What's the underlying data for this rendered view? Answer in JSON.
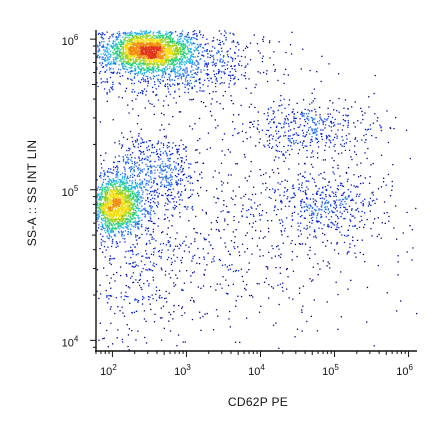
{
  "chart_data": {
    "type": "scatter",
    "subtype": "flow-cytometry-density-dot-plot",
    "xlabel": "CD62P PE",
    "ylabel": "SS-A :: SS INT LIN",
    "x_scale": "log",
    "y_scale": "log",
    "xlim": [
      60,
      1300000
    ],
    "ylim": [
      8500,
      1150000
    ],
    "x_ticks": [
      {
        "value": 100,
        "base": "10",
        "exp": "2"
      },
      {
        "value": 1000,
        "base": "10",
        "exp": "3"
      },
      {
        "value": 10000,
        "base": "10",
        "exp": "4"
      },
      {
        "value": 100000,
        "base": "10",
        "exp": "5"
      },
      {
        "value": 1000000,
        "base": "10",
        "exp": "6"
      }
    ],
    "y_ticks": [
      {
        "value": 10000,
        "base": "10",
        "exp": "4"
      },
      {
        "value": 100000,
        "base": "10",
        "exp": "5"
      },
      {
        "value": 1000000,
        "base": "10",
        "exp": "6"
      }
    ],
    "density_colors": [
      "#00008b",
      "#0020d0",
      "#1f6cf0",
      "#22b5e8",
      "#27d07a",
      "#9ad21e",
      "#f2df14",
      "#f28c10",
      "#e2341a"
    ],
    "populations": [
      {
        "x_center": 300,
        "y_center": 850000,
        "x_spread_decades": 0.28,
        "y_spread_decades": 0.07,
        "relative_count": 0.3
      },
      {
        "x_center": 600,
        "y_center": 700000,
        "x_spread_decades": 0.7,
        "y_spread_decades": 0.13,
        "relative_count": 0.14
      },
      {
        "x_center": 110,
        "y_center": 80000,
        "x_spread_decades": 0.18,
        "y_spread_decades": 0.1,
        "relative_count": 0.22
      },
      {
        "x_center": 350,
        "y_center": 130000,
        "x_spread_decades": 0.3,
        "y_spread_decades": 0.14,
        "relative_count": 0.08
      },
      {
        "x_center": 40000,
        "y_center": 260000,
        "x_spread_decades": 0.5,
        "y_spread_decades": 0.1,
        "relative_count": 0.06
      },
      {
        "x_center": 80000,
        "y_center": 80000,
        "x_spread_decades": 0.45,
        "y_spread_decades": 0.12,
        "relative_count": 0.06
      },
      {
        "x_center": 3000,
        "y_center": 50000,
        "x_spread_decades": 1.1,
        "y_spread_decades": 0.35,
        "relative_count": 0.1
      },
      {
        "x_center": 200,
        "y_center": 25000,
        "x_spread_decades": 0.4,
        "y_spread_decades": 0.25,
        "relative_count": 0.04
      }
    ],
    "grid": false,
    "legend": "none"
  }
}
